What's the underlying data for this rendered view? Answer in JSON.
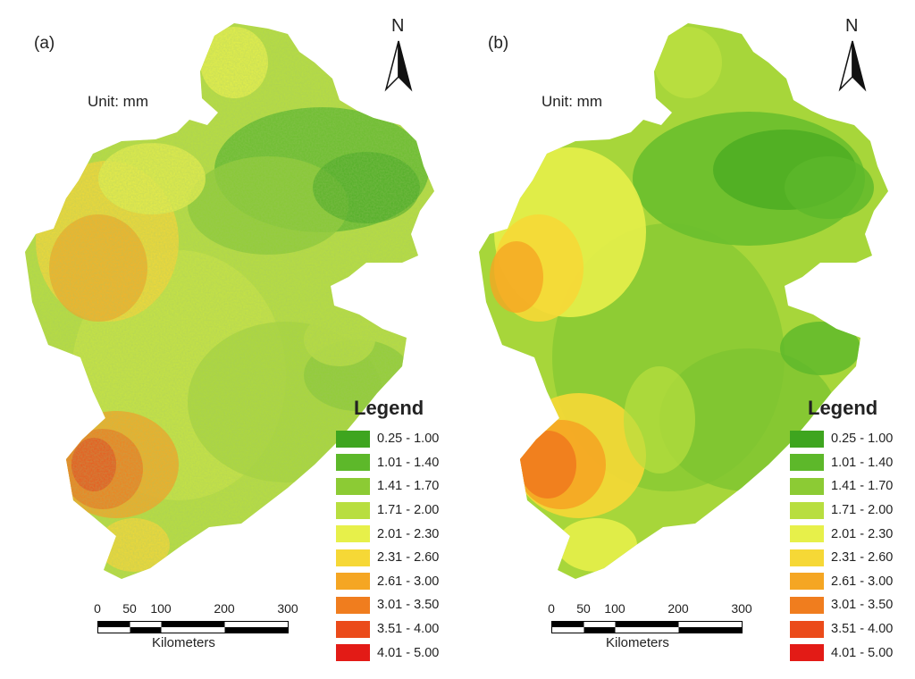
{
  "panels": [
    {
      "label": "(a)",
      "unit_label": "Unit: mm",
      "north_label": "N",
      "legend_title": "Legend",
      "scalebar": {
        "ticks": [
          "0",
          "50",
          "100",
          "200",
          "300"
        ],
        "units": "Kilometers"
      }
    },
    {
      "label": "(b)",
      "unit_label": "Unit: mm",
      "north_label": "N",
      "legend_title": "Legend",
      "scalebar": {
        "ticks": [
          "0",
          "50",
          "100",
          "200",
          "300"
        ],
        "units": "Kilometers"
      }
    }
  ],
  "legend_classes": [
    {
      "range": "0.25 - 1.00",
      "color": "#3ea51f"
    },
    {
      "range": "1.01 - 1.40",
      "color": "#5db82a"
    },
    {
      "range": "1.41 - 1.70",
      "color": "#8ccb34"
    },
    {
      "range": "1.71 - 2.00",
      "color": "#b8de3f"
    },
    {
      "range": "2.01 - 2.30",
      "color": "#e7f04a"
    },
    {
      "range": "2.31 - 2.60",
      "color": "#f6d836"
    },
    {
      "range": "2.61 - 3.00",
      "color": "#f5a623"
    },
    {
      "range": "3.01 - 3.50",
      "color": "#f07d1e"
    },
    {
      "range": "3.51 - 4.00",
      "color": "#eb4b1a"
    },
    {
      "range": "4.01 - 5.00",
      "color": "#e31b16"
    }
  ]
}
